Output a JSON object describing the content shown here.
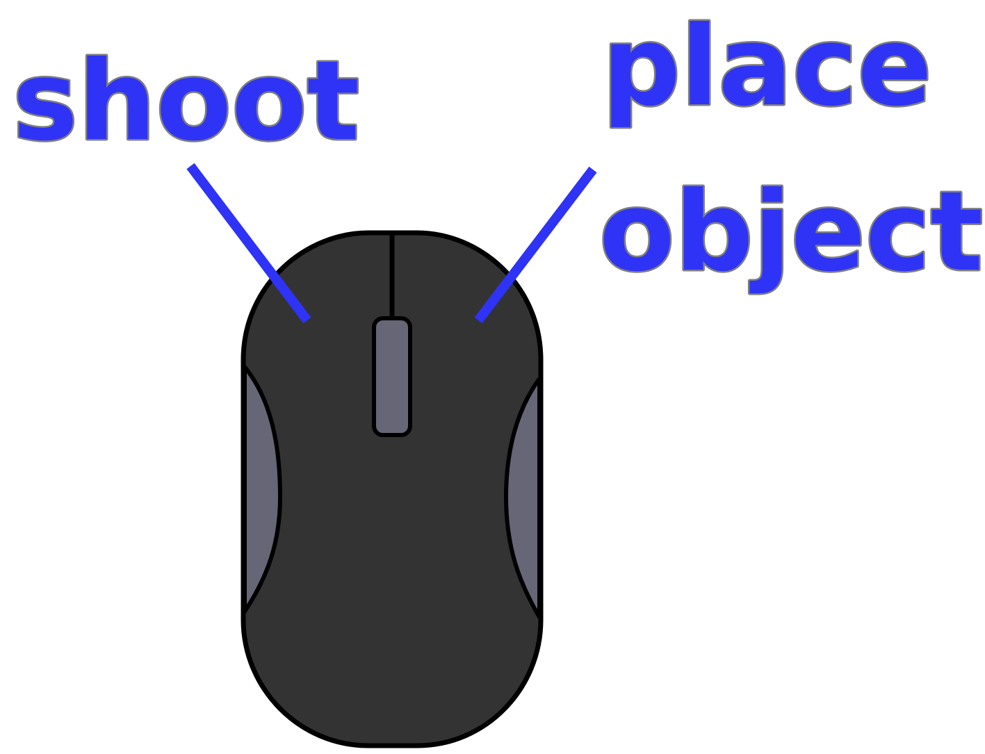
{
  "labels": {
    "left": "shoot",
    "right_line1": "place",
    "right_line2": "object"
  },
  "colors": {
    "label_text": "#2e33f5",
    "label_outline": "#7f7f7f",
    "leader_line": "#2e33f5",
    "mouse_body": "#333333",
    "mouse_accent": "#666677",
    "outline": "#000000",
    "background": "#ffffff"
  },
  "icons": {
    "mouse": "computer-mouse-icon"
  }
}
